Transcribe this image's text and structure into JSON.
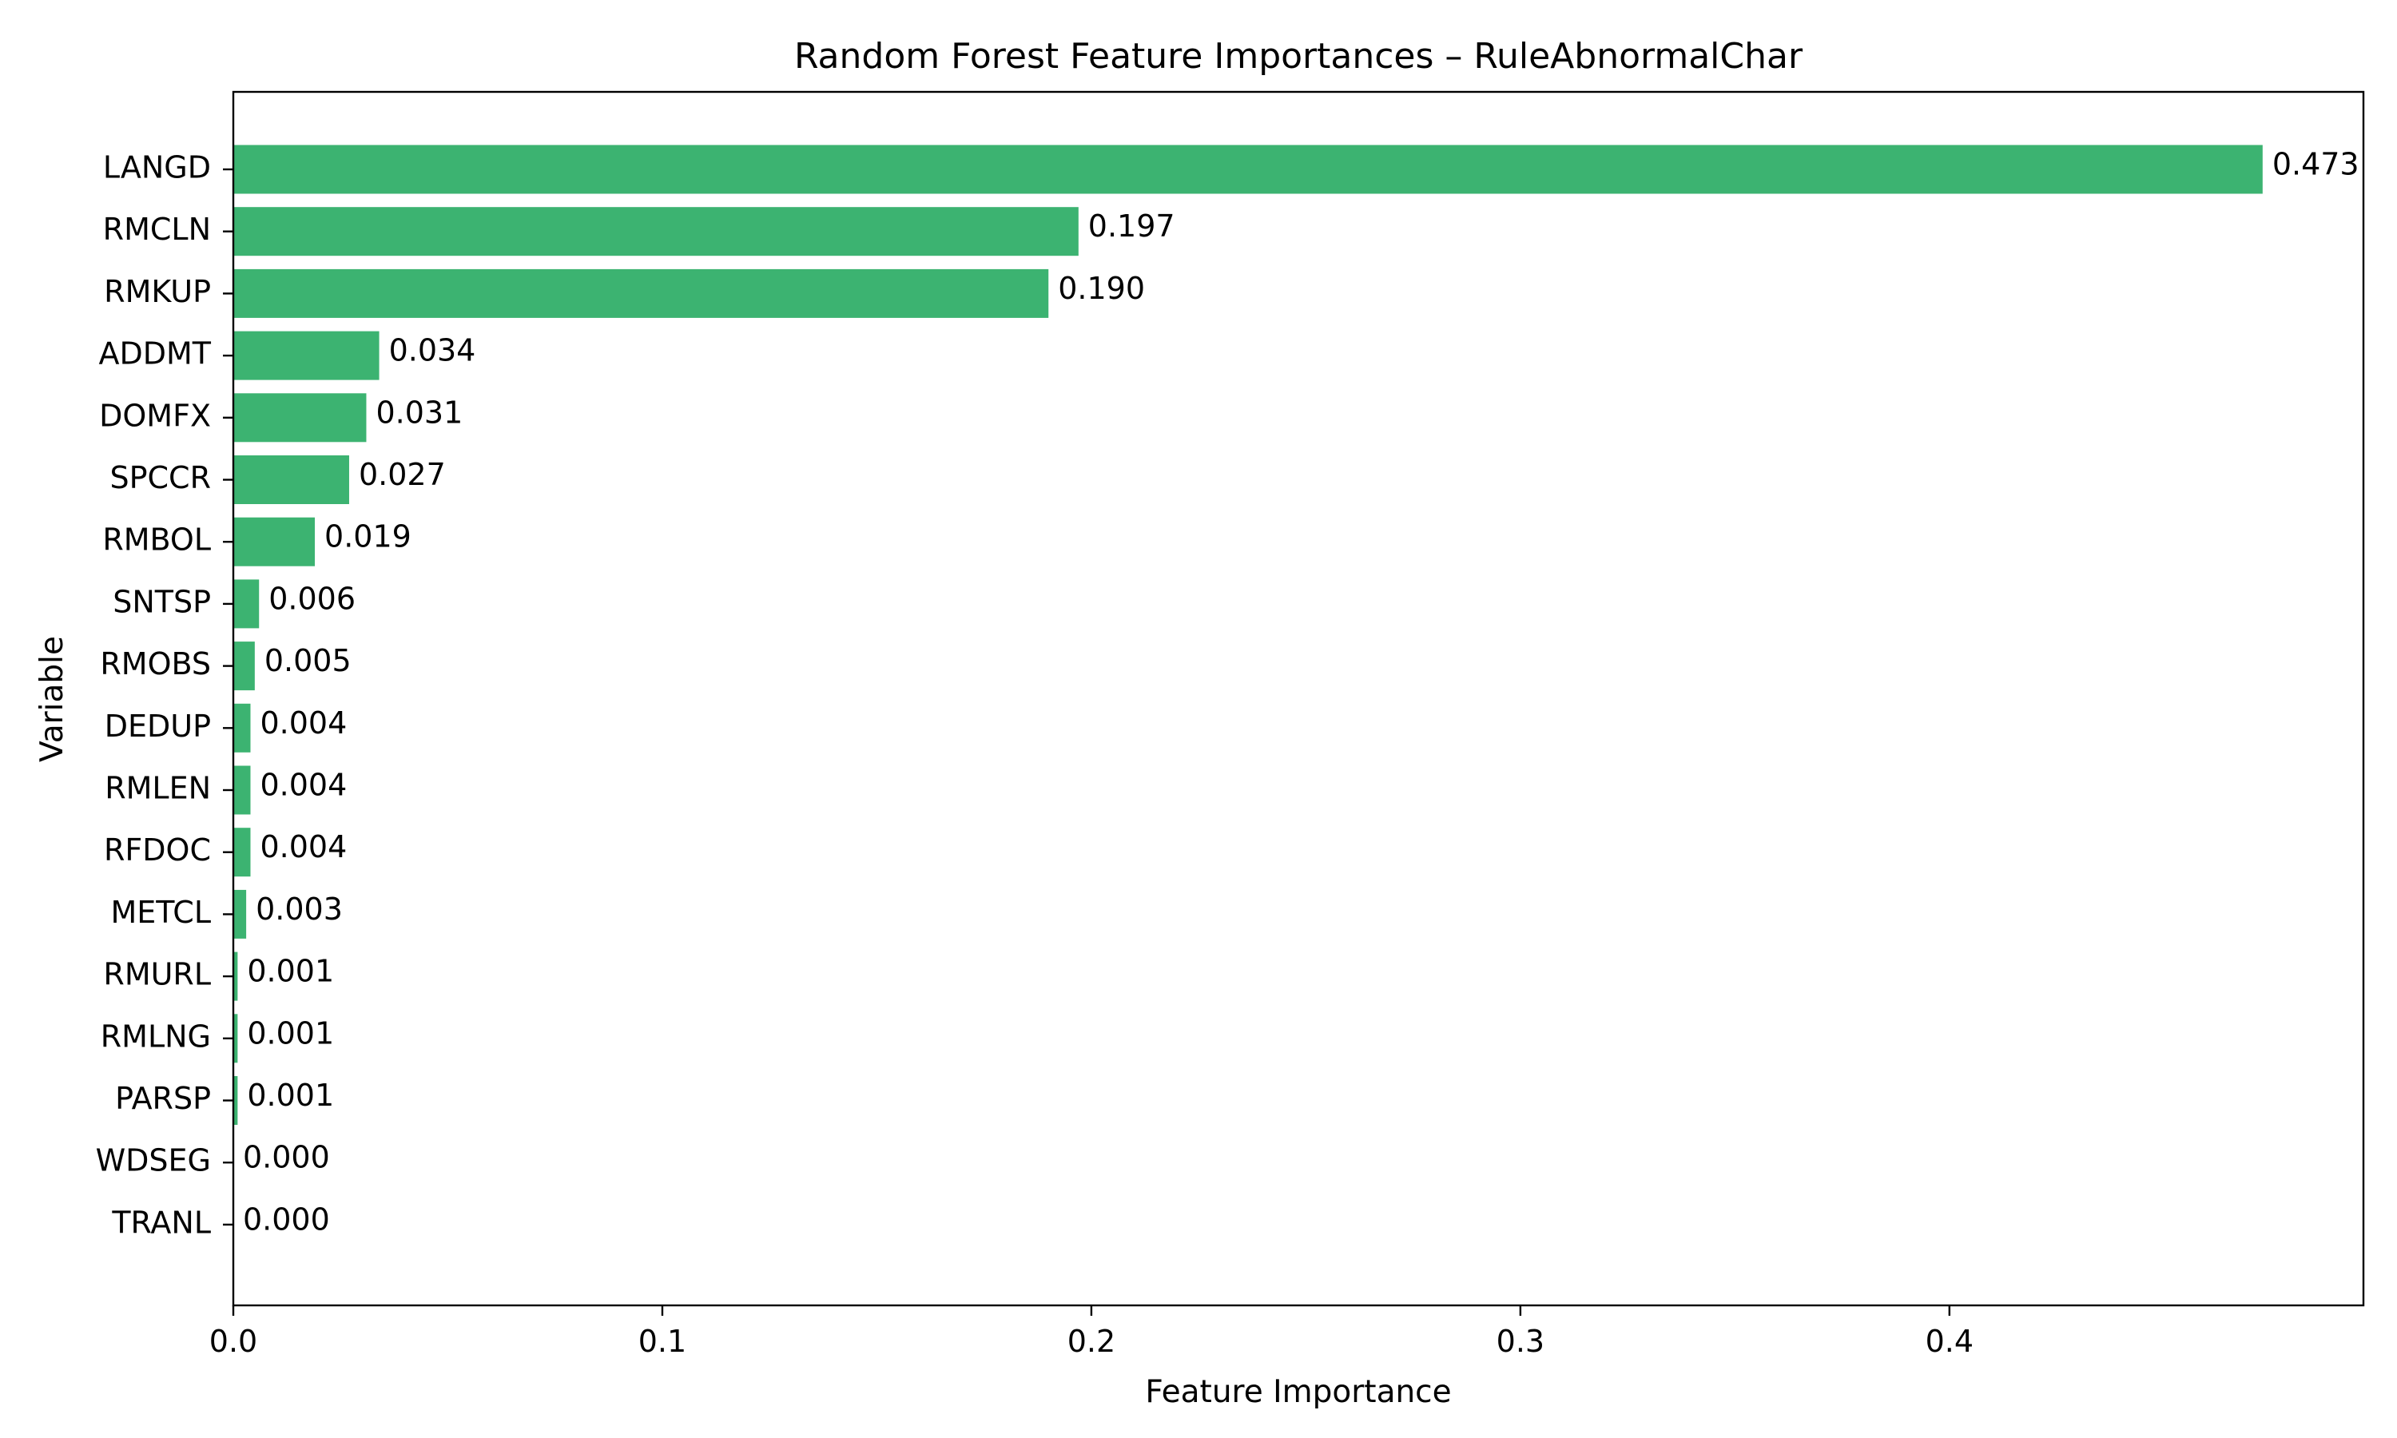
{
  "chart_data": {
    "type": "bar",
    "orientation": "horizontal",
    "title": "Random Forest Feature Importances – RuleAbnormalChar",
    "xlabel": "Feature Importance",
    "ylabel": "Variable",
    "xlim": [
      0,
      0.4965
    ],
    "x_ticks": [
      0.0,
      0.1,
      0.2,
      0.3,
      0.4
    ],
    "x_tick_labels": [
      "0.0",
      "0.1",
      "0.2",
      "0.3",
      "0.4"
    ],
    "categories": [
      "LANGD",
      "RMCLN",
      "RMKUP",
      "ADDMT",
      "DOMFX",
      "SPCCR",
      "RMBOL",
      "SNTSP",
      "RMOBS",
      "DEDUP",
      "RMLEN",
      "RFDOC",
      "METCL",
      "RMURL",
      "RMLNG",
      "PARSP",
      "WDSEG",
      "TRANL"
    ],
    "values": [
      0.473,
      0.197,
      0.19,
      0.034,
      0.031,
      0.027,
      0.019,
      0.006,
      0.005,
      0.004,
      0.004,
      0.004,
      0.003,
      0.001,
      0.001,
      0.001,
      0.0,
      0.0
    ],
    "value_labels": [
      "0.473",
      "0.197",
      "0.190",
      "0.034",
      "0.031",
      "0.027",
      "0.019",
      "0.006",
      "0.005",
      "0.004",
      "0.004",
      "0.004",
      "0.003",
      "0.001",
      "0.001",
      "0.001",
      "0.000",
      "0.000"
    ],
    "bar_color": "#3cb371",
    "grid": false,
    "legend": "none"
  }
}
